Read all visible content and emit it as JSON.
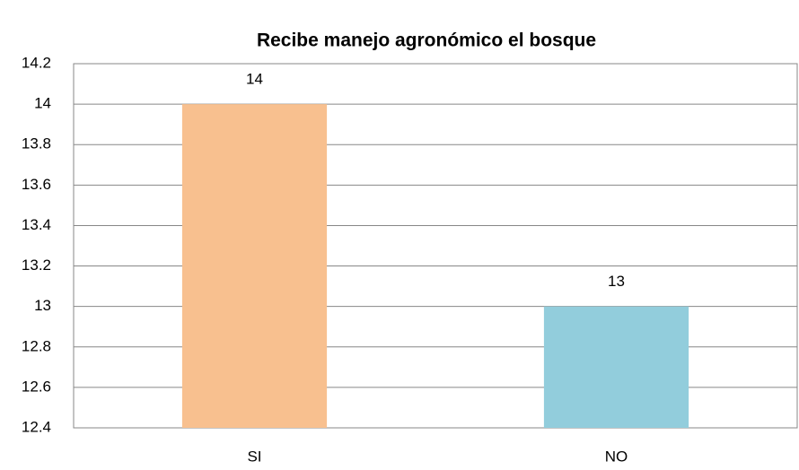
{
  "chart_data": {
    "type": "bar",
    "title": "Recibe manejo agronómico el bosque",
    "categories": [
      "SI",
      "NO"
    ],
    "values": [
      14,
      13
    ],
    "colors": [
      "#f8c08f",
      "#92cddc"
    ],
    "ylim": [
      12.4,
      14.2
    ],
    "yticks": [
      12.4,
      12.6,
      12.8,
      13,
      13.2,
      13.4,
      13.6,
      13.8,
      14,
      14.2
    ],
    "grid": true
  }
}
